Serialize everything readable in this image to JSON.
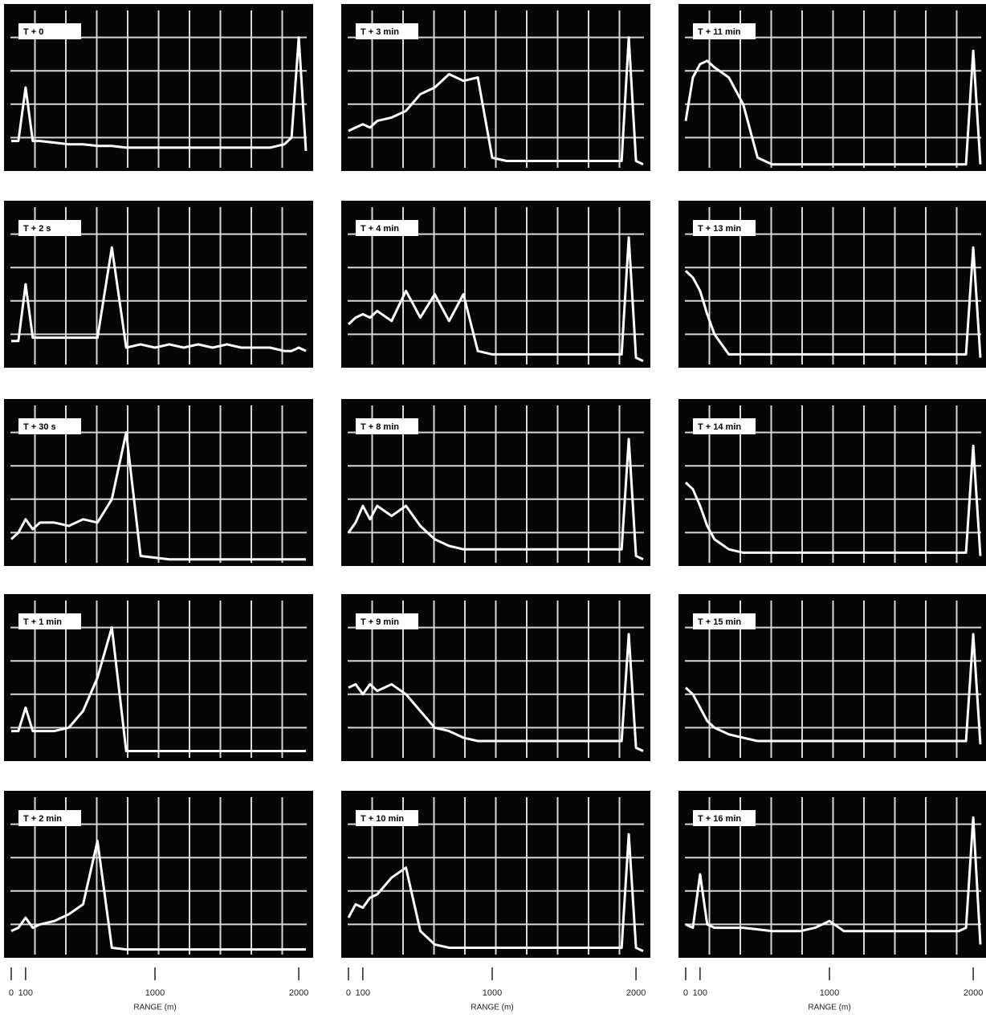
{
  "chart_data": [
    {
      "type": "line",
      "title": "T + 0",
      "color": "#ffffff",
      "grid": true,
      "xlim": [
        -50,
        2100
      ],
      "ylim": [
        0,
        5
      ],
      "x": [
        0,
        50,
        100,
        150,
        200,
        300,
        400,
        500,
        600,
        700,
        800,
        900,
        1000,
        1100,
        1200,
        1300,
        1400,
        1500,
        1600,
        1700,
        1800,
        1900,
        1950,
        2000,
        2050
      ],
      "values": [
        0.9,
        0.9,
        2.5,
        0.9,
        0.9,
        0.85,
        0.8,
        0.8,
        0.75,
        0.75,
        0.7,
        0.7,
        0.7,
        0.7,
        0.7,
        0.7,
        0.7,
        0.7,
        0.7,
        0.7,
        0.7,
        0.8,
        1.0,
        4.0,
        0.6
      ]
    },
    {
      "type": "line",
      "title": "T + 2 s",
      "color": "#ffffff",
      "grid": true,
      "xlim": [
        -50,
        2100
      ],
      "ylim": [
        0,
        5
      ],
      "x": [
        0,
        50,
        100,
        150,
        200,
        300,
        400,
        500,
        600,
        700,
        800,
        900,
        1000,
        1100,
        1200,
        1300,
        1400,
        1500,
        1600,
        1700,
        1800,
        1900,
        1950,
        2000,
        2050
      ],
      "values": [
        0.8,
        0.8,
        2.5,
        0.9,
        0.9,
        0.9,
        0.9,
        0.9,
        0.9,
        3.6,
        0.6,
        0.7,
        0.6,
        0.7,
        0.6,
        0.7,
        0.6,
        0.7,
        0.6,
        0.6,
        0.6,
        0.5,
        0.5,
        0.6,
        0.5
      ]
    },
    {
      "type": "line",
      "title": "T + 30 s",
      "color": "#ffffff",
      "grid": true,
      "xlim": [
        -50,
        2100
      ],
      "ylim": [
        0,
        5
      ],
      "x": [
        0,
        50,
        100,
        150,
        200,
        300,
        400,
        500,
        600,
        700,
        800,
        900,
        1000,
        1100,
        1200,
        1300,
        1400,
        1500,
        1600,
        1700,
        1800,
        1900,
        1950,
        2000,
        2050
      ],
      "values": [
        0.8,
        1.0,
        1.4,
        1.1,
        1.3,
        1.3,
        1.2,
        1.4,
        1.3,
        2.0,
        4.0,
        0.3,
        0.25,
        0.2,
        0.2,
        0.2,
        0.2,
        0.2,
        0.2,
        0.2,
        0.2,
        0.2,
        0.2,
        0.2,
        0.2
      ]
    },
    {
      "type": "line",
      "title": "T + 1 min",
      "color": "#ffffff",
      "grid": true,
      "xlim": [
        -50,
        2100
      ],
      "ylim": [
        0,
        5
      ],
      "x": [
        0,
        50,
        100,
        150,
        200,
        300,
        400,
        500,
        600,
        700,
        800,
        900,
        1000,
        1100,
        1200,
        1300,
        1400,
        1500,
        1600,
        1700,
        1800,
        1900,
        1950,
        2000,
        2050
      ],
      "values": [
        0.9,
        0.9,
        1.6,
        0.9,
        0.9,
        0.9,
        1.0,
        1.5,
        2.5,
        4.0,
        0.3,
        0.3,
        0.3,
        0.3,
        0.3,
        0.3,
        0.3,
        0.3,
        0.3,
        0.3,
        0.3,
        0.3,
        0.3,
        0.3,
        0.3
      ]
    },
    {
      "type": "line",
      "title": "T + 2 min",
      "color": "#ffffff",
      "grid": true,
      "xlim": [
        -50,
        2100
      ],
      "ylim": [
        0,
        5
      ],
      "x": [
        0,
        50,
        100,
        150,
        200,
        300,
        400,
        500,
        600,
        700,
        800,
        900,
        1000,
        1100,
        1200,
        1300,
        1400,
        1500,
        1600,
        1700,
        1800,
        1900,
        1950,
        2000,
        2050
      ],
      "values": [
        0.8,
        0.9,
        1.2,
        0.9,
        1.0,
        1.1,
        1.3,
        1.6,
        3.5,
        0.3,
        0.25,
        0.25,
        0.25,
        0.25,
        0.25,
        0.25,
        0.25,
        0.25,
        0.25,
        0.25,
        0.25,
        0.25,
        0.25,
        0.25,
        0.25
      ],
      "xticks": [
        0,
        100,
        1000,
        2000
      ],
      "xlabel": "RANGE (m)"
    },
    {
      "type": "line",
      "title": "T + 3 min",
      "color": "#ffffff",
      "grid": true,
      "xlim": [
        -50,
        2100
      ],
      "ylim": [
        0,
        5
      ],
      "x": [
        0,
        50,
        100,
        150,
        200,
        300,
        400,
        500,
        600,
        700,
        800,
        900,
        1000,
        1100,
        1200,
        1300,
        1400,
        1500,
        1600,
        1700,
        1800,
        1900,
        1950,
        2000,
        2050
      ],
      "values": [
        1.2,
        1.3,
        1.4,
        1.3,
        1.5,
        1.6,
        1.8,
        2.3,
        2.5,
        2.9,
        2.7,
        2.8,
        0.4,
        0.3,
        0.3,
        0.3,
        0.3,
        0.3,
        0.3,
        0.3,
        0.3,
        0.3,
        4.0,
        0.3,
        0.2
      ]
    },
    {
      "type": "line",
      "title": "T + 4 min",
      "color": "#ffffff",
      "grid": true,
      "xlim": [
        -50,
        2100
      ],
      "ylim": [
        0,
        5
      ],
      "x": [
        0,
        50,
        100,
        150,
        200,
        300,
        400,
        500,
        600,
        700,
        800,
        900,
        1000,
        1100,
        1200,
        1300,
        1400,
        1500,
        1600,
        1700,
        1800,
        1900,
        1950,
        2000,
        2050
      ],
      "values": [
        1.3,
        1.5,
        1.6,
        1.5,
        1.7,
        1.4,
        2.3,
        1.5,
        2.2,
        1.4,
        2.2,
        0.5,
        0.4,
        0.4,
        0.4,
        0.4,
        0.4,
        0.4,
        0.4,
        0.4,
        0.4,
        0.4,
        3.9,
        0.3,
        0.2
      ]
    },
    {
      "type": "line",
      "title": "T + 8 min",
      "color": "#ffffff",
      "grid": true,
      "xlim": [
        -50,
        2100
      ],
      "ylim": [
        0,
        5
      ],
      "x": [
        0,
        50,
        100,
        150,
        200,
        300,
        400,
        500,
        600,
        700,
        800,
        900,
        1000,
        1100,
        1200,
        1300,
        1400,
        1500,
        1600,
        1700,
        1800,
        1900,
        1950,
        2000,
        2050
      ],
      "values": [
        1.0,
        1.3,
        1.8,
        1.4,
        1.8,
        1.5,
        1.8,
        1.2,
        0.8,
        0.6,
        0.5,
        0.5,
        0.5,
        0.5,
        0.5,
        0.5,
        0.5,
        0.5,
        0.5,
        0.5,
        0.5,
        0.5,
        3.8,
        0.3,
        0.2
      ]
    },
    {
      "type": "line",
      "title": "T + 9 min",
      "color": "#ffffff",
      "grid": true,
      "xlim": [
        -50,
        2100
      ],
      "ylim": [
        0,
        5
      ],
      "x": [
        0,
        50,
        100,
        150,
        200,
        300,
        400,
        500,
        600,
        700,
        800,
        900,
        1000,
        1100,
        1200,
        1300,
        1400,
        1500,
        1600,
        1700,
        1800,
        1900,
        1950,
        2000,
        2050
      ],
      "values": [
        2.2,
        2.3,
        2.0,
        2.3,
        2.1,
        2.3,
        2.0,
        1.5,
        1.0,
        0.9,
        0.7,
        0.6,
        0.6,
        0.6,
        0.6,
        0.6,
        0.6,
        0.6,
        0.6,
        0.6,
        0.6,
        0.6,
        3.8,
        0.4,
        0.3
      ]
    },
    {
      "type": "line",
      "title": "T + 10 min",
      "color": "#ffffff",
      "grid": true,
      "xlim": [
        -50,
        2100
      ],
      "ylim": [
        0,
        5
      ],
      "x": [
        0,
        50,
        100,
        150,
        200,
        300,
        400,
        500,
        600,
        700,
        800,
        900,
        1000,
        1100,
        1200,
        1300,
        1400,
        1500,
        1600,
        1700,
        1800,
        1900,
        1950,
        2000,
        2050
      ],
      "values": [
        1.2,
        1.6,
        1.5,
        1.8,
        1.9,
        2.4,
        2.7,
        0.8,
        0.4,
        0.3,
        0.3,
        0.3,
        0.3,
        0.3,
        0.3,
        0.3,
        0.3,
        0.3,
        0.3,
        0.3,
        0.3,
        0.3,
        3.7,
        0.3,
        0.2
      ],
      "xticks": [
        0,
        100,
        1000,
        2000
      ],
      "xlabel": "RANGE (m)"
    },
    {
      "type": "line",
      "title": "T + 11 min",
      "color": "#ffffff",
      "grid": true,
      "xlim": [
        -50,
        2100
      ],
      "ylim": [
        0,
        5
      ],
      "x": [
        0,
        50,
        100,
        150,
        200,
        300,
        400,
        500,
        600,
        700,
        800,
        900,
        1000,
        1100,
        1200,
        1300,
        1400,
        1500,
        1600,
        1700,
        1800,
        1900,
        1950,
        2000,
        2050
      ],
      "values": [
        1.5,
        2.8,
        3.2,
        3.3,
        3.1,
        2.8,
        2.0,
        0.4,
        0.2,
        0.2,
        0.2,
        0.2,
        0.2,
        0.2,
        0.2,
        0.2,
        0.2,
        0.2,
        0.2,
        0.2,
        0.2,
        0.2,
        0.2,
        3.6,
        0.2
      ]
    },
    {
      "type": "line",
      "title": "T + 13 min",
      "color": "#ffffff",
      "grid": true,
      "xlim": [
        -50,
        2100
      ],
      "ylim": [
        0,
        5
      ],
      "x": [
        0,
        50,
        100,
        150,
        200,
        300,
        400,
        500,
        600,
        700,
        800,
        900,
        1000,
        1100,
        1200,
        1300,
        1400,
        1500,
        1600,
        1700,
        1800,
        1900,
        1950,
        2000,
        2050
      ],
      "values": [
        2.9,
        2.7,
        2.3,
        1.6,
        1.0,
        0.4,
        0.4,
        0.4,
        0.4,
        0.4,
        0.4,
        0.4,
        0.4,
        0.4,
        0.4,
        0.4,
        0.4,
        0.4,
        0.4,
        0.4,
        0.4,
        0.4,
        0.4,
        3.6,
        0.3
      ]
    },
    {
      "type": "line",
      "title": "T + 14 min",
      "color": "#ffffff",
      "grid": true,
      "xlim": [
        -50,
        2100
      ],
      "ylim": [
        0,
        5
      ],
      "x": [
        0,
        50,
        100,
        150,
        200,
        300,
        400,
        500,
        600,
        700,
        800,
        900,
        1000,
        1100,
        1200,
        1300,
        1400,
        1500,
        1600,
        1700,
        1800,
        1900,
        1950,
        2000,
        2050
      ],
      "values": [
        2.5,
        2.3,
        1.8,
        1.2,
        0.8,
        0.5,
        0.4,
        0.4,
        0.4,
        0.4,
        0.4,
        0.4,
        0.4,
        0.4,
        0.4,
        0.4,
        0.4,
        0.4,
        0.4,
        0.4,
        0.4,
        0.4,
        0.4,
        3.6,
        0.3
      ]
    },
    {
      "type": "line",
      "title": "T + 15 min",
      "color": "#ffffff",
      "grid": true,
      "xlim": [
        -50,
        2100
      ],
      "ylim": [
        0,
        5
      ],
      "x": [
        0,
        50,
        100,
        150,
        200,
        300,
        400,
        500,
        600,
        700,
        800,
        900,
        1000,
        1100,
        1200,
        1300,
        1400,
        1500,
        1600,
        1700,
        1800,
        1900,
        1950,
        2000,
        2050
      ],
      "values": [
        2.2,
        2.0,
        1.6,
        1.2,
        1.0,
        0.8,
        0.7,
        0.6,
        0.6,
        0.6,
        0.6,
        0.6,
        0.6,
        0.6,
        0.6,
        0.6,
        0.6,
        0.6,
        0.6,
        0.6,
        0.6,
        0.6,
        0.6,
        3.8,
        0.5
      ]
    },
    {
      "type": "line",
      "title": "T + 16 min",
      "color": "#ffffff",
      "grid": true,
      "xlim": [
        -50,
        2100
      ],
      "ylim": [
        0,
        5
      ],
      "x": [
        0,
        50,
        100,
        150,
        200,
        300,
        400,
        500,
        600,
        700,
        800,
        900,
        1000,
        1100,
        1200,
        1300,
        1400,
        1500,
        1600,
        1700,
        1800,
        1900,
        1950,
        2000,
        2050
      ],
      "values": [
        1.0,
        0.9,
        2.5,
        1.0,
        0.9,
        0.9,
        0.9,
        0.85,
        0.8,
        0.8,
        0.8,
        0.9,
        1.1,
        0.8,
        0.8,
        0.8,
        0.8,
        0.8,
        0.8,
        0.8,
        0.8,
        0.8,
        0.9,
        4.2,
        0.4
      ],
      "xticks": [
        0,
        100,
        1000,
        2000
      ],
      "xlabel": "RANGE (m)"
    }
  ]
}
